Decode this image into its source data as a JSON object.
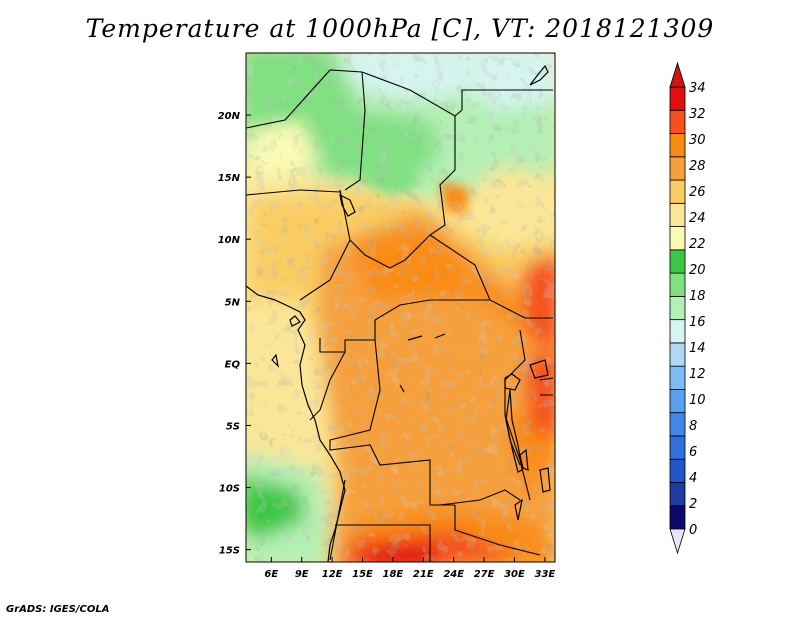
{
  "title": "Temperature at 1000hPa [C], VT: 2018121309",
  "credit": "GrADS: IGES/COLA",
  "map": {
    "lon_range": [
      3.5,
      34
    ],
    "lat_range": [
      -16,
      25
    ],
    "x_ticks": [
      {
        "value": 6,
        "label": "6E"
      },
      {
        "value": 9,
        "label": "9E"
      },
      {
        "value": 12,
        "label": "12E"
      },
      {
        "value": 15,
        "label": "15E"
      },
      {
        "value": 18,
        "label": "18E"
      },
      {
        "value": 21,
        "label": "21E"
      },
      {
        "value": 24,
        "label": "24E"
      },
      {
        "value": 27,
        "label": "27E"
      },
      {
        "value": 30,
        "label": "30E"
      },
      {
        "value": 33,
        "label": "33E"
      }
    ],
    "y_ticks": [
      {
        "value": 20,
        "label": "20N"
      },
      {
        "value": 15,
        "label": "15N"
      },
      {
        "value": 10,
        "label": "10N"
      },
      {
        "value": 5,
        "label": "5N"
      },
      {
        "value": 0,
        "label": "EQ"
      },
      {
        "value": -5,
        "label": "5S"
      },
      {
        "value": -10,
        "label": "10S"
      },
      {
        "value": -15,
        "label": "15S"
      }
    ]
  },
  "colorbar": {
    "levels": [
      "0",
      "2",
      "4",
      "6",
      "8",
      "10",
      "12",
      "14",
      "16",
      "18",
      "20",
      "22",
      "24",
      "26",
      "28",
      "30",
      "32",
      "34"
    ],
    "colors": [
      "#0a0a6e",
      "#1e3ca0",
      "#2255c8",
      "#3070dc",
      "#4287e8",
      "#5aa0f0",
      "#80bcf4",
      "#aed8f4",
      "#d6f4f0",
      "#b4f0b4",
      "#80e082",
      "#3cc846",
      "#fafab4",
      "#fae696",
      "#facd64",
      "#f5a03c",
      "#fa8c14",
      "#f5501e",
      "#e10f0f"
    ],
    "under_color": "#e8e6fc",
    "over_color": "#d21414"
  }
}
